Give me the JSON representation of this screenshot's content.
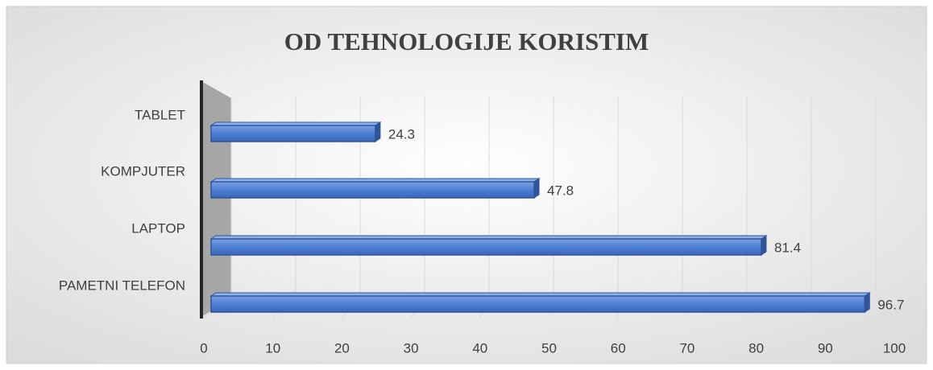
{
  "chart_data": {
    "type": "bar3d",
    "orientation": "horizontal",
    "title": "OD TEHNOLOGIJE KORISTIM",
    "categories": [
      "TABLET",
      "KOMPJUTER",
      "LAPTOP",
      "PAMETNI TELEFON"
    ],
    "values": [
      24.3,
      47.8,
      81.4,
      96.7
    ],
    "color": "#4472c4",
    "xlim": [
      0,
      100
    ],
    "xticks": [
      0,
      10,
      20,
      30,
      40,
      50,
      60,
      70,
      80,
      90,
      100
    ],
    "grid": true
  }
}
